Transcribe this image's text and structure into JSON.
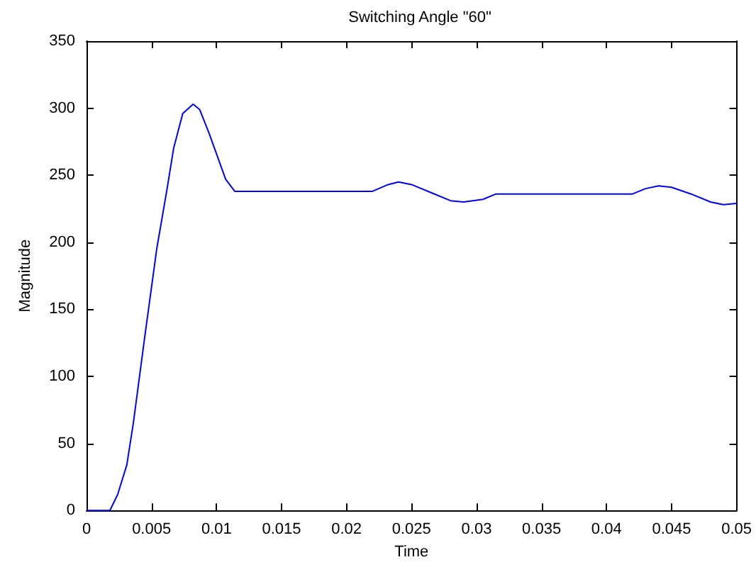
{
  "chart_data": {
    "type": "line",
    "title": "Switching Angle \"60\"",
    "xlabel": "Time",
    "ylabel": "Magnitude",
    "x": [
      0,
      0.0018,
      0.0024,
      0.0031,
      0.0036,
      0.0045,
      0.0054,
      0.0062,
      0.0067,
      0.0074,
      0.0082,
      0.0087,
      0.0094,
      0.0107,
      0.0114,
      0.0118,
      0.022,
      0.0232,
      0.024,
      0.025,
      0.0265,
      0.028,
      0.029,
      0.0305,
      0.0315,
      0.042,
      0.043,
      0.044,
      0.045,
      0.0465,
      0.048,
      0.049,
      0.05
    ],
    "series": [
      {
        "color": "#0000ff",
        "values": [
          0,
          0,
          12,
          34,
          65,
          131,
          195,
          240,
          270,
          296,
          303,
          299,
          282,
          247,
          238,
          238,
          238,
          243,
          245,
          243,
          237,
          231,
          230,
          232,
          236,
          236,
          240,
          242,
          241,
          236,
          230,
          228,
          229
        ]
      }
    ],
    "xlim": [
      0,
      0.05
    ],
    "xticks": [
      0,
      0.005,
      0.01,
      0.015,
      0.02,
      0.025,
      0.03,
      0.035,
      0.04,
      0.045,
      0.05
    ],
    "ylim": [
      0,
      350
    ],
    "yticks": [
      0,
      50,
      100,
      150,
      200,
      250,
      300,
      350
    ],
    "marker": "none",
    "line_style": "solid"
  }
}
